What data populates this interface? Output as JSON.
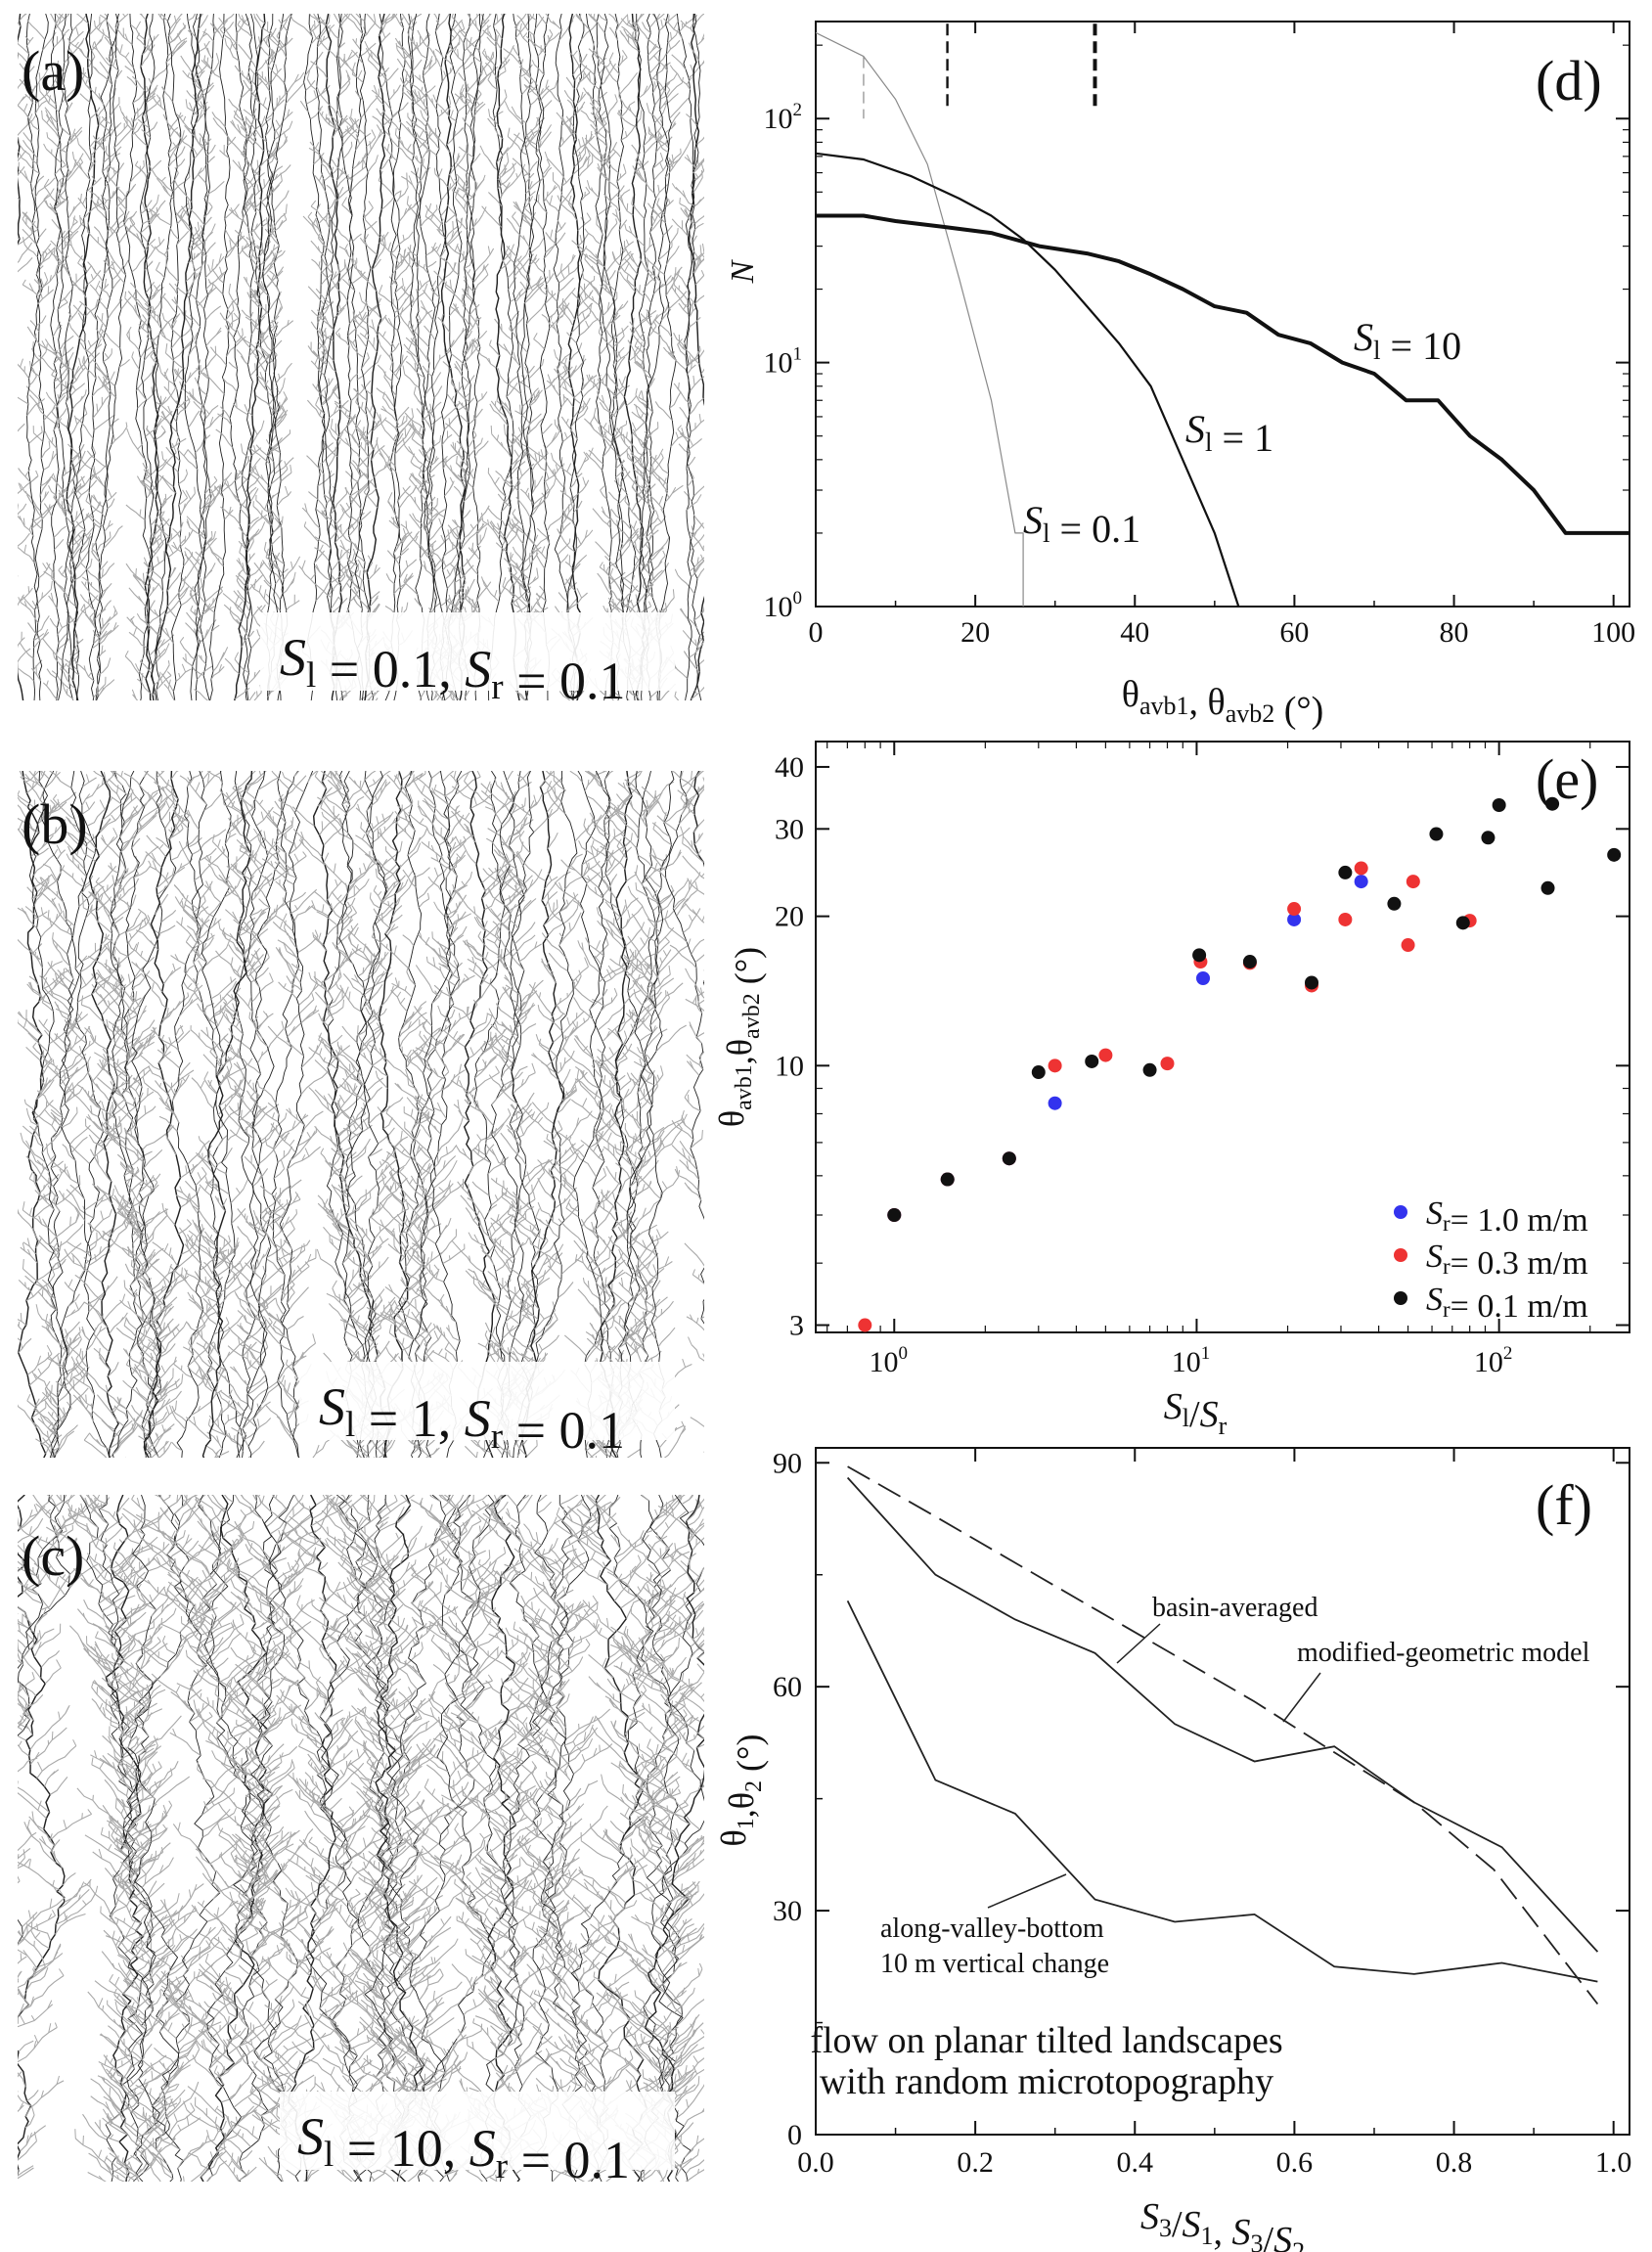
{
  "panels": {
    "a": {
      "label": "(a)",
      "caption": [
        {
          "t": "S",
          "it": true
        },
        {
          "t": "l",
          "sub": true
        },
        {
          "t": " = 0.1, "
        },
        {
          "t": "S",
          "it": true
        },
        {
          "t": "r",
          "sub": true
        },
        {
          "t": " = 0.1"
        }
      ]
    },
    "b": {
      "label": "(b)",
      "caption": [
        {
          "t": "S",
          "it": true
        },
        {
          "t": "l",
          "sub": true
        },
        {
          "t": " = 1, "
        },
        {
          "t": "S",
          "it": true
        },
        {
          "t": "r",
          "sub": true
        },
        {
          "t": " = 0.1"
        }
      ]
    },
    "c": {
      "label": "(c)",
      "caption": [
        {
          "t": "S",
          "it": true
        },
        {
          "t": "l",
          "sub": true
        },
        {
          "t": " = 10, "
        },
        {
          "t": "S",
          "it": true
        },
        {
          "t": "r",
          "sub": true
        },
        {
          "t": " = 0.1"
        }
      ]
    }
  },
  "colors": {
    "axis": "#111111",
    "thin_line": "#8a8a8a",
    "blue": "#3333ee",
    "red": "#ee3333",
    "black": "#111111",
    "network_dark": "#222222",
    "network_light": "#a8a8a8"
  },
  "chart_data": [
    {
      "id": "d",
      "panel_label": "(d)",
      "type": "line",
      "ylog": true,
      "xlim": [
        0,
        102
      ],
      "ylim": [
        1,
        250
      ],
      "xticks": [
        0,
        20,
        40,
        60,
        80,
        100
      ],
      "yticks": [
        {
          "v": 1,
          "base": "10",
          "exp": "0"
        },
        {
          "v": 10,
          "base": "10",
          "exp": "1"
        },
        {
          "v": 100,
          "base": "10",
          "exp": "2"
        }
      ],
      "ylabel": "N",
      "xlabel": [
        {
          "t": "θ"
        },
        {
          "t": "avb1",
          "sub": true
        },
        {
          "t": ", θ"
        },
        {
          "t": "avb2",
          "sub": true
        },
        {
          "t": " (°)"
        }
      ],
      "series": [
        {
          "name": [
            {
              "t": "S",
              "it": true
            },
            {
              "t": "l",
              "sub": true
            },
            {
              "t": " = 0.1"
            }
          ],
          "width": 1.2,
          "color": "#8a8a8a",
          "points": [
            [
              0,
              225
            ],
            [
              6,
              180
            ],
            [
              10,
              120
            ],
            [
              14,
              65
            ],
            [
              18,
              22
            ],
            [
              22,
              7
            ],
            [
              25,
              2
            ],
            [
              26,
              2
            ],
            [
              26,
              1
            ]
          ]
        },
        {
          "name": [
            {
              "t": "S",
              "it": true
            },
            {
              "t": "l",
              "sub": true
            },
            {
              "t": " = 1"
            }
          ],
          "width": 2.2,
          "color": "#111111",
          "points": [
            [
              0,
              72
            ],
            [
              6,
              68
            ],
            [
              12,
              58
            ],
            [
              18,
              47
            ],
            [
              22,
              40
            ],
            [
              26,
              32
            ],
            [
              30,
              24
            ],
            [
              34,
              17
            ],
            [
              38,
              12
            ],
            [
              42,
              8
            ],
            [
              46,
              4
            ],
            [
              50,
              2
            ],
            [
              53,
              1
            ]
          ]
        },
        {
          "name": [
            {
              "t": "S",
              "it": true
            },
            {
              "t": "l",
              "sub": true
            },
            {
              "t": " = 10"
            }
          ],
          "width": 4.0,
          "color": "#111111",
          "points": [
            [
              0,
              40
            ],
            [
              6,
              40
            ],
            [
              10,
              38
            ],
            [
              16,
              36
            ],
            [
              22,
              34
            ],
            [
              28,
              30
            ],
            [
              34,
              28
            ],
            [
              38,
              26
            ],
            [
              42,
              23
            ],
            [
              46,
              20
            ],
            [
              50,
              17
            ],
            [
              54,
              16
            ],
            [
              58,
              13
            ],
            [
              62,
              12
            ],
            [
              66,
              10
            ],
            [
              70,
              9
            ],
            [
              74,
              7
            ],
            [
              78,
              7
            ],
            [
              82,
              5
            ],
            [
              86,
              4
            ],
            [
              90,
              3
            ],
            [
              94,
              2
            ],
            [
              102,
              2
            ]
          ]
        }
      ],
      "markers_dashed": [
        {
          "x": 6,
          "y_top": 180,
          "y_bot": 100,
          "weight": 1.2,
          "color": "#8a8a8a"
        },
        {
          "x": 16.5,
          "y_top": 245,
          "y_bot": 108,
          "weight": 2.4,
          "color": "#111111"
        },
        {
          "x": 35,
          "y_top": 245,
          "y_bot": 108,
          "weight": 4.0,
          "color": "#111111"
        }
      ]
    },
    {
      "id": "e",
      "panel_label": "(e)",
      "type": "scatter",
      "xlog": true,
      "ylog": true,
      "xlim": [
        0.55,
        270
      ],
      "ylim": [
        2.9,
        45
      ],
      "xticks": [
        {
          "v": 1,
          "base": "10",
          "exp": "0"
        },
        {
          "v": 10,
          "base": "10",
          "exp": "1"
        },
        {
          "v": 100,
          "base": "10",
          "exp": "2"
        }
      ],
      "yticks": [
        3,
        10,
        20,
        30,
        40
      ],
      "xlabel": [
        {
          "t": "S",
          "it": true
        },
        {
          "t": "l",
          "sub": true
        },
        {
          "t": "/"
        },
        {
          "t": "S",
          "it": true
        },
        {
          "t": "r",
          "sub": true
        }
      ],
      "ylabel": [
        {
          "t": "θ"
        },
        {
          "t": "avb1",
          "sub": true
        },
        {
          "t": ",θ"
        },
        {
          "t": "avb2",
          "sub": true
        },
        {
          "t": " (°)"
        }
      ],
      "legend_position": "bottom-right",
      "series": [
        {
          "name": [
            {
              "t": "S",
              "it": true
            },
            {
              "t": "r",
              "sub": true
            },
            {
              "t": "= 1.0 m/m"
            }
          ],
          "color": "#3333ee",
          "points": [
            [
              1.0,
              5
            ],
            [
              1.5,
              5.9
            ],
            [
              2.4,
              6.5
            ],
            [
              3.4,
              8.4
            ],
            [
              10.5,
              15
            ],
            [
              21,
              19.7
            ],
            [
              35,
              23.5
            ]
          ]
        },
        {
          "name": [
            {
              "t": "S",
              "it": true
            },
            {
              "t": "r",
              "sub": true
            },
            {
              "t": "= 0.3 m/m"
            }
          ],
          "color": "#ee3333",
          "points": [
            [
              0.8,
              3
            ],
            [
              1.0,
              5
            ],
            [
              1.5,
              5.9
            ],
            [
              2.4,
              6.5
            ],
            [
              3.4,
              10
            ],
            [
              5,
              10.5
            ],
            [
              8,
              10.1
            ],
            [
              10.3,
              16.2
            ],
            [
              15,
              16.1
            ],
            [
              24,
              14.5
            ],
            [
              21,
              20.7
            ],
            [
              31,
              19.7
            ],
            [
              35,
              25
            ],
            [
              50,
              17.5
            ],
            [
              52,
              23.5
            ],
            [
              80,
              19.6
            ]
          ]
        },
        {
          "name": [
            {
              "t": "S",
              "it": true
            },
            {
              "t": "r",
              "sub": true
            },
            {
              "t": "= 0.1 m/m"
            }
          ],
          "color": "#111111",
          "points": [
            [
              1.0,
              5
            ],
            [
              1.5,
              5.9
            ],
            [
              2.4,
              6.5
            ],
            [
              3.0,
              9.7
            ],
            [
              4.5,
              10.2
            ],
            [
              7,
              9.8
            ],
            [
              10.2,
              16.7
            ],
            [
              15,
              16.2
            ],
            [
              24,
              14.7
            ],
            [
              31,
              24.5
            ],
            [
              45,
              21.2
            ],
            [
              62,
              29.3
            ],
            [
              76,
              19.4
            ],
            [
              92,
              28.8
            ],
            [
              100,
              33.5
            ],
            [
              145,
              22.8
            ],
            [
              150,
              33.7
            ],
            [
              240,
              26.6
            ]
          ]
        }
      ]
    },
    {
      "id": "f",
      "panel_label": "(f)",
      "type": "line",
      "xlim": [
        0,
        1.02
      ],
      "ylim": [
        0,
        92
      ],
      "xticks": [
        0.0,
        0.2,
        0.4,
        0.6,
        0.8,
        1.0
      ],
      "yticks": [
        0,
        30,
        60,
        90
      ],
      "xlabel": [
        {
          "t": "S",
          "it": true
        },
        {
          "t": "3",
          "sub": true
        },
        {
          "t": "/"
        },
        {
          "t": "S",
          "it": true
        },
        {
          "t": "1",
          "sub": true
        },
        {
          "t": ", "
        },
        {
          "t": "S",
          "it": true
        },
        {
          "t": "3",
          "sub": true
        },
        {
          "t": "/"
        },
        {
          "t": "S",
          "it": true
        },
        {
          "t": "2",
          "sub": true
        }
      ],
      "ylabel": [
        {
          "t": "θ"
        },
        {
          "t": "1",
          "sub": true
        },
        {
          "t": ",θ"
        },
        {
          "t": "2",
          "sub": true
        },
        {
          "t": " (°)"
        }
      ],
      "series": [
        {
          "name": "modified-geometric model",
          "dash": true,
          "points": [
            [
              0.04,
              89.5
            ],
            [
              0.15,
              82.8
            ],
            [
              0.25,
              76.6
            ],
            [
              0.35,
              70.4
            ],
            [
              0.45,
              64.2
            ],
            [
              0.55,
              58.0
            ],
            [
              0.65,
              51.2
            ],
            [
              0.75,
              44.5
            ],
            [
              0.85,
              35.5
            ],
            [
              0.98,
              17.5
            ]
          ]
        },
        {
          "name": "basin-averaged",
          "dash": false,
          "points": [
            [
              0.04,
              88
            ],
            [
              0.15,
              75
            ],
            [
              0.25,
              69
            ],
            [
              0.35,
              64.5
            ],
            [
              0.45,
              55
            ],
            [
              0.55,
              50
            ],
            [
              0.65,
              52
            ],
            [
              0.75,
              44.5
            ],
            [
              0.86,
              38.5
            ],
            [
              0.98,
              24.5
            ]
          ]
        },
        {
          "name": "along-valley-bottom 10 m vertical change",
          "dash": false,
          "points": [
            [
              0.04,
              71.5
            ],
            [
              0.15,
              47.5
            ],
            [
              0.25,
              43
            ],
            [
              0.35,
              31.5
            ],
            [
              0.45,
              28.5
            ],
            [
              0.55,
              29.5
            ],
            [
              0.65,
              22.5
            ],
            [
              0.75,
              21.5
            ],
            [
              0.86,
              23
            ],
            [
              0.98,
              20.5
            ]
          ]
        }
      ],
      "annotations": [
        "basin-averaged",
        "modified-geometric model",
        "along-valley-bottom",
        "10 m vertical change"
      ],
      "note_lines": [
        "flow on planar tilted landscapes",
        "with random microtopography"
      ]
    }
  ]
}
